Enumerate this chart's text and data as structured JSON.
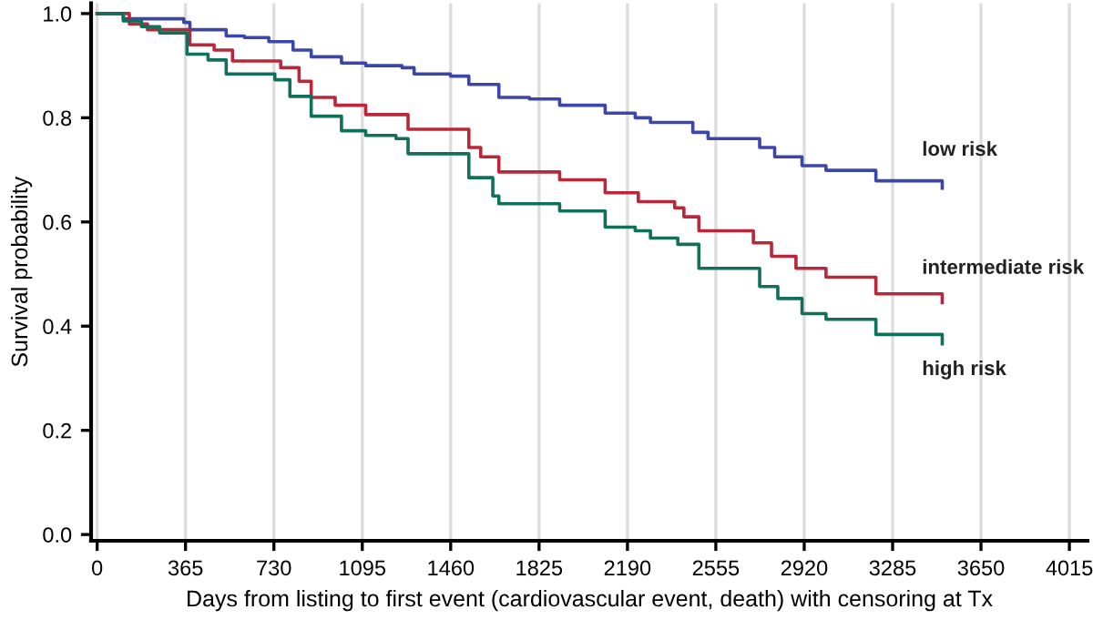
{
  "chart_data": {
    "type": "step",
    "xlabel": "Days from listing to first event (cardiovascular event, death) with censoring at Tx",
    "ylabel": "Survival probability",
    "xlim": [
      -25,
      4090
    ],
    "ylim": [
      -0.012,
      1.02
    ],
    "xticks": [
      0,
      365,
      730,
      1095,
      1460,
      1825,
      2190,
      2555,
      2920,
      3285,
      3650,
      4015
    ],
    "yticks": [
      {
        "value": 0,
        "label": "0.0"
      },
      {
        "value": 0.2,
        "label": "0.2"
      },
      {
        "value": 0.4,
        "label": "0.4"
      },
      {
        "value": 0.6,
        "label": "0.6"
      },
      {
        "value": 0.8,
        "label": "0.8"
      },
      {
        "value": 1,
        "label": "1.0"
      }
    ],
    "grid": "x",
    "legend": false,
    "series": [
      {
        "name": "low risk",
        "color": "#3c46a8",
        "x": [
          0,
          108,
          358,
          383,
          533,
          608,
          709,
          809,
          884,
          1009,
          1109,
          1259,
          1309,
          1459,
          1535,
          1659,
          1785,
          1910,
          2098,
          2222,
          2285,
          2460,
          2523,
          2736,
          2798,
          2911,
          3010,
          3216,
          3487,
          3490
        ],
        "values": [
          1.0,
          0.99,
          0.983,
          0.969,
          0.957,
          0.954,
          0.946,
          0.93,
          0.917,
          0.905,
          0.9,
          0.896,
          0.884,
          0.88,
          0.864,
          0.839,
          0.836,
          0.824,
          0.809,
          0.8,
          0.791,
          0.772,
          0.76,
          0.743,
          0.725,
          0.708,
          0.699,
          0.679,
          0.679,
          0.665
        ]
      },
      {
        "name": "intermediate risk",
        "color": "#b8283a",
        "x": [
          0,
          133,
          208,
          383,
          483,
          559,
          758,
          834,
          884,
          983,
          1109,
          1284,
          1535,
          1584,
          1659,
          1910,
          2098,
          2235,
          2385,
          2423,
          2485,
          2710,
          2785,
          2886,
          3010,
          3216,
          3487,
          3490
        ],
        "values": [
          1.0,
          0.98,
          0.969,
          0.94,
          0.93,
          0.909,
          0.896,
          0.87,
          0.839,
          0.824,
          0.806,
          0.778,
          0.743,
          0.725,
          0.696,
          0.681,
          0.656,
          0.639,
          0.627,
          0.61,
          0.583,
          0.56,
          0.534,
          0.511,
          0.494,
          0.462,
          0.462,
          0.445
        ]
      },
      {
        "name": "high risk",
        "color": "#12705a",
        "x": [
          0,
          108,
          183,
          258,
          371,
          458,
          533,
          734,
          796,
          884,
          1009,
          1109,
          1234,
          1284,
          1535,
          1634,
          1659,
          1910,
          2098,
          2222,
          2285,
          2398,
          2485,
          2736,
          2811,
          2911,
          3010,
          3216,
          3487,
          3490
        ],
        "values": [
          1.0,
          0.986,
          0.975,
          0.963,
          0.922,
          0.911,
          0.884,
          0.873,
          0.841,
          0.803,
          0.775,
          0.766,
          0.76,
          0.731,
          0.685,
          0.65,
          0.635,
          0.621,
          0.59,
          0.583,
          0.569,
          0.557,
          0.511,
          0.476,
          0.453,
          0.424,
          0.413,
          0.384,
          0.384,
          0.366
        ]
      }
    ]
  }
}
